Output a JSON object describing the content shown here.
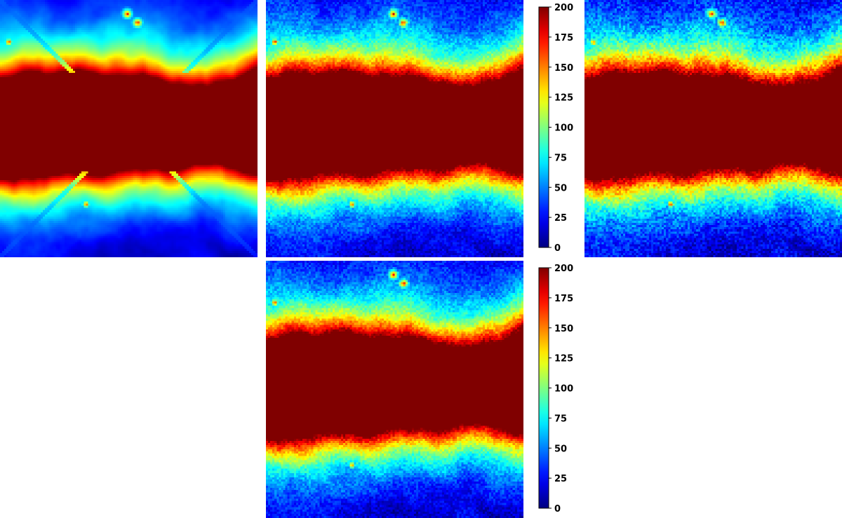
{
  "chart_data": {
    "type": "heatmap",
    "panels": [
      {
        "id": "a",
        "artifacts": "diagonal-x-streaks",
        "noise": "smooth"
      },
      {
        "id": "b",
        "artifacts": "none",
        "noise": "moderate"
      },
      {
        "id": "c",
        "artifacts": "none",
        "noise": "fine"
      },
      {
        "id": "d",
        "artifacts": "none",
        "noise": "moderate"
      }
    ],
    "colormap": "jet",
    "vmin": 0,
    "vmax": 200,
    "colorbars": [
      {
        "ticks": [
          "0",
          "25",
          "50",
          "75",
          "100",
          "125",
          "150",
          "175",
          "200"
        ]
      },
      {
        "ticks": [
          "0",
          "25",
          "50",
          "75",
          "100",
          "125",
          "150",
          "175",
          "200"
        ]
      }
    ]
  }
}
